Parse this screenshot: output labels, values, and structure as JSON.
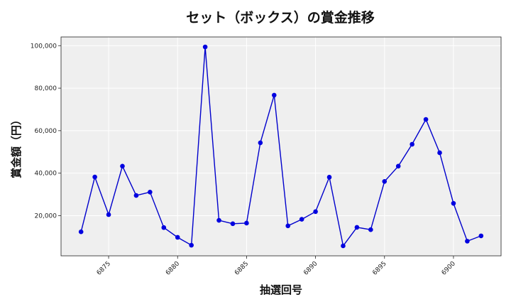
{
  "chart_data": {
    "type": "line",
    "title": "セット（ボックス）の賞金推移",
    "xlabel": "抽選回号",
    "ylabel": "賞金額（円）",
    "x": [
      6873,
      6874,
      6875,
      6876,
      6877,
      6878,
      6879,
      6880,
      6881,
      6882,
      6883,
      6884,
      6885,
      6886,
      6887,
      6888,
      6889,
      6890,
      6891,
      6892,
      6893,
      6894,
      6895,
      6896,
      6897,
      6898,
      6899,
      6900,
      6901,
      6902
    ],
    "values": [
      12400,
      38200,
      20500,
      43300,
      29500,
      31100,
      14400,
      9800,
      6100,
      99400,
      17800,
      16200,
      16500,
      54300,
      76700,
      15200,
      18300,
      21900,
      38100,
      5800,
      14500,
      13400,
      36100,
      43300,
      53600,
      65300,
      49600,
      25800,
      8000,
      10500
    ],
    "xlim": [
      6871.55,
      6903.45
    ],
    "ylim": [
      1100,
      104100
    ],
    "xticks": [
      6875,
      6880,
      6885,
      6890,
      6895,
      6900
    ],
    "yticks": [
      20000,
      40000,
      60000,
      80000,
      100000
    ],
    "ytick_labels": [
      "20,000",
      "40,000",
      "60,000",
      "80,000",
      "100,000"
    ],
    "grid": true,
    "colors": {
      "line": "#0000cc",
      "marker": "#0000e0",
      "background": "#efefef",
      "grid": "#ffffff"
    }
  }
}
